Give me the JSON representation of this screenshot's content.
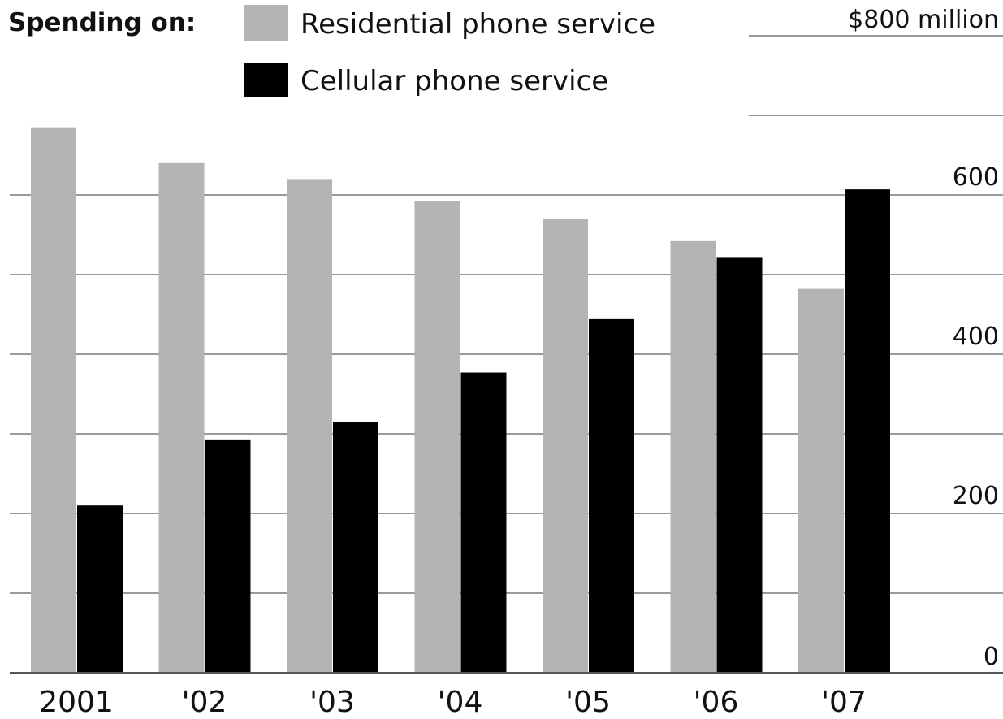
{
  "legend": {
    "title": "Spending on:"
  },
  "chart_data": {
    "type": "bar",
    "categories": [
      "2001",
      "'02",
      "'03",
      "'04",
      "'05",
      "'06",
      "'07"
    ],
    "series": [
      {
        "name": "Residential phone service",
        "color": "#b4b4b4",
        "values": [
          685,
          640,
          620,
          592,
          570,
          542,
          482
        ]
      },
      {
        "name": "Cellular phone service",
        "color": "#000000",
        "values": [
          210,
          293,
          315,
          377,
          444,
          522,
          607
        ]
      }
    ],
    "ylim": [
      0,
      800
    ],
    "yticks": [
      {
        "value": 0,
        "label": "0"
      },
      {
        "value": 200,
        "label": "200"
      },
      {
        "value": 400,
        "label": "400"
      },
      {
        "value": 600,
        "label": "600"
      },
      {
        "value": 800,
        "label": "$800 million"
      }
    ],
    "gridlines": [
      100,
      200,
      300,
      400,
      500,
      600,
      700,
      800
    ],
    "y_axis_side": "right",
    "legend_position": "top-left",
    "title": "",
    "xlabel": "",
    "ylabel": ""
  }
}
